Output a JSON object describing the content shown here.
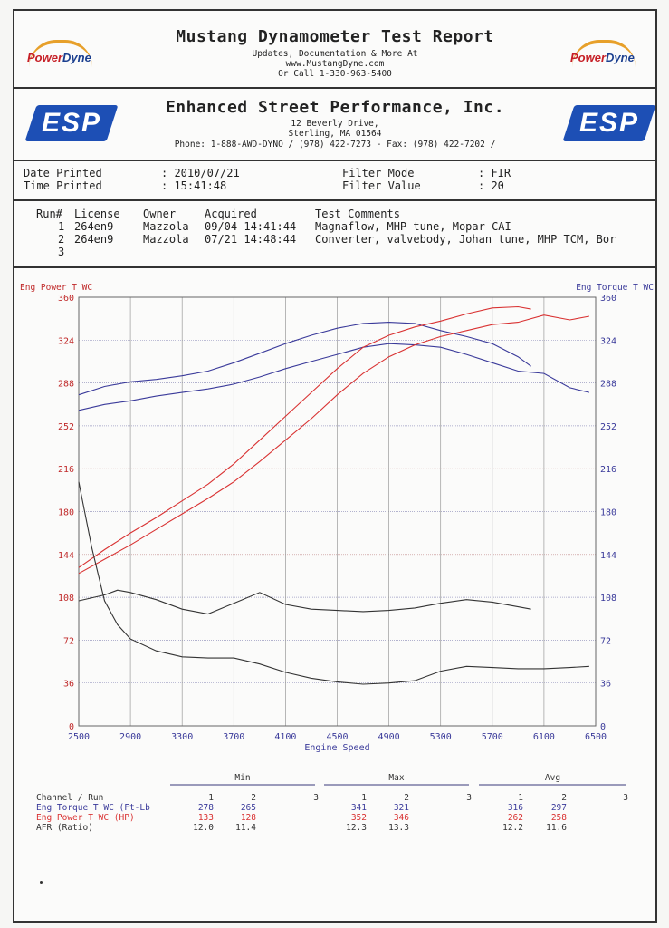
{
  "header": {
    "title": "Mustang Dynamometer Test Report",
    "line1": "Updates, Documentation & More At",
    "line2": "www.MustangDyne.com",
    "line3": "Or Call 1-330-963-5400",
    "logo_word_a": "Power",
    "logo_word_b": "Dyne"
  },
  "shop": {
    "name": "Enhanced Street Performance, Inc.",
    "address1": "12 Beverly Drive,",
    "address2": "Sterling, MA  01564",
    "phone": "Phone: 1-888-AWD-DYNO / (978) 422-7273 - Fax: (978) 422-7202 /",
    "logo": "ESP"
  },
  "meta": {
    "date_label": "Date Printed",
    "date_value": ": 2010/07/21",
    "time_label": "Time Printed",
    "time_value": ": 15:41:48",
    "filter_mode_label": "Filter Mode",
    "filter_mode_value": ": FIR",
    "filter_value_label": "Filter Value",
    "filter_value_value": ": 20"
  },
  "runs": {
    "columns": [
      "Run#",
      "License",
      "Owner",
      "Acquired",
      "Test Comments"
    ],
    "rows": [
      {
        "run": "1",
        "license": "264en9",
        "owner": "Mazzola",
        "acquired": "09/04 14:41:44",
        "comments": "Magnaflow, MHP tune, Mopar CAI"
      },
      {
        "run": "2",
        "license": "264en9",
        "owner": "Mazzola",
        "acquired": "07/21 14:48:44",
        "comments": "Converter, valvebody, Johan tune, MHP TCM, Bor"
      },
      {
        "run": "3",
        "license": "",
        "owner": "",
        "acquired": "",
        "comments": ""
      }
    ]
  },
  "chart_data": {
    "type": "line",
    "title": "",
    "xlabel": "Engine Speed",
    "ylabel_left": "Eng Power T WC",
    "ylabel_right": "Eng Torque T WC",
    "xlim": [
      2500,
      6500
    ],
    "ylim": [
      0,
      360
    ],
    "x_ticks": [
      2500,
      2900,
      3300,
      3700,
      4100,
      4500,
      4900,
      5300,
      5700,
      6100,
      6500
    ],
    "y_ticks": [
      0,
      36,
      72,
      108,
      144,
      180,
      216,
      252,
      288,
      324,
      360
    ],
    "grid": true,
    "colors": {
      "torque": "#3a3a9a",
      "power": "#d93232",
      "afr": "#333333"
    },
    "series": [
      {
        "name": "Eng Torque T WC",
        "run": "1",
        "color": "#3a3a9a",
        "x": [
          2500,
          2700,
          2900,
          3100,
          3300,
          3500,
          3700,
          3900,
          4100,
          4300,
          4500,
          4700,
          4900,
          5100,
          5300,
          5500,
          5700,
          5900,
          6000
        ],
        "y": [
          278,
          285,
          289,
          291,
          294,
          298,
          305,
          313,
          321,
          328,
          334,
          338,
          339,
          338,
          332,
          327,
          321,
          310,
          302
        ]
      },
      {
        "name": "Eng Torque T WC",
        "run": "2",
        "color": "#3a3a9a",
        "x": [
          2500,
          2700,
          2900,
          3100,
          3300,
          3500,
          3700,
          3900,
          4100,
          4300,
          4500,
          4700,
          4900,
          5100,
          5300,
          5500,
          5700,
          5900,
          6100,
          6300,
          6450
        ],
        "y": [
          265,
          270,
          273,
          277,
          280,
          283,
          287,
          293,
          300,
          306,
          312,
          318,
          321,
          320,
          318,
          312,
          305,
          298,
          296,
          284,
          280
        ]
      },
      {
        "name": "Eng Power T WC",
        "run": "1",
        "color": "#d93232",
        "x": [
          2500,
          2700,
          2900,
          3100,
          3300,
          3500,
          3700,
          3900,
          4100,
          4300,
          4500,
          4700,
          4900,
          5100,
          5300,
          5500,
          5700,
          5900,
          6000
        ],
        "y": [
          133,
          148,
          162,
          175,
          189,
          203,
          220,
          240,
          260,
          280,
          300,
          318,
          328,
          335,
          340,
          346,
          351,
          352,
          350
        ]
      },
      {
        "name": "Eng Power T WC",
        "run": "2",
        "color": "#d93232",
        "x": [
          2500,
          2700,
          2900,
          3100,
          3300,
          3500,
          3700,
          3900,
          4100,
          4300,
          4500,
          4700,
          4900,
          5100,
          5300,
          5500,
          5700,
          5900,
          6100,
          6300,
          6450
        ],
        "y": [
          128,
          140,
          152,
          165,
          178,
          191,
          205,
          222,
          240,
          258,
          278,
          296,
          310,
          320,
          327,
          332,
          337,
          339,
          345,
          341,
          344
        ]
      },
      {
        "name": "AFR",
        "run": "1",
        "color": "#333333",
        "x": [
          2500,
          2700,
          2800,
          2900,
          3100,
          3300,
          3500,
          3700,
          3900,
          4100,
          4300,
          4500,
          4700,
          4900,
          5100,
          5300,
          5500,
          5700,
          5900,
          6000
        ],
        "y": [
          105,
          110,
          114,
          112,
          106,
          98,
          94,
          103,
          112,
          102,
          98,
          97,
          96,
          97,
          99,
          103,
          106,
          104,
          100,
          98
        ]
      },
      {
        "name": "AFR",
        "run": "2",
        "color": "#333333",
        "x": [
          2500,
          2600,
          2700,
          2800,
          2900,
          3100,
          3300,
          3500,
          3700,
          3900,
          4100,
          4300,
          4500,
          4700,
          4900,
          5100,
          5300,
          5500,
          5700,
          5900,
          6100,
          6300,
          6450
        ],
        "y": [
          205,
          150,
          105,
          85,
          73,
          63,
          58,
          57,
          57,
          52,
          45,
          40,
          37,
          35,
          36,
          38,
          46,
          50,
          49,
          48,
          48,
          49,
          50
        ]
      }
    ]
  },
  "stats": {
    "groups": [
      "Min",
      "Max",
      "Avg"
    ],
    "channel_header": "Channel / Run",
    "run_cols": [
      "1",
      "2",
      "3"
    ],
    "rows": [
      {
        "label": "Eng Torque T WC (Ft-Lb",
        "color": "#3a3a9a",
        "min": [
          "278",
          "265",
          ""
        ],
        "max": [
          "341",
          "321",
          ""
        ],
        "avg": [
          "316",
          "297",
          ""
        ]
      },
      {
        "label": "Eng Power T WC (HP)",
        "color": "#d93232",
        "min": [
          "133",
          "128",
          ""
        ],
        "max": [
          "352",
          "346",
          ""
        ],
        "avg": [
          "262",
          "258",
          ""
        ]
      },
      {
        "label": "AFR (Ratio)",
        "color": "#333333",
        "min": [
          "12.0",
          "11.4",
          ""
        ],
        "max": [
          "12.3",
          "13.3",
          ""
        ],
        "avg": [
          "12.2",
          "11.6",
          ""
        ]
      }
    ]
  }
}
